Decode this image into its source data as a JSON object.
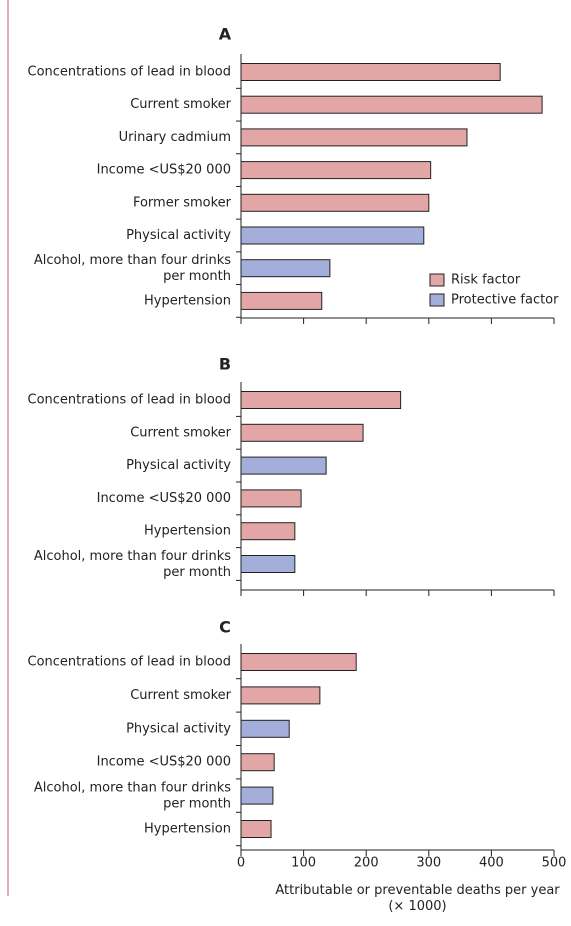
{
  "chart_data": [
    {
      "type": "bar",
      "orientation": "horizontal",
      "title": "A",
      "categories": [
        "Concentrations of lead in blood",
        "Current smoker",
        "Urinary cadmium",
        "Income <US$20 000",
        "Former smoker",
        "Physical activity",
        "Alcohol, more than four drinks\nper month",
        "Hypertension"
      ],
      "values": [
        414,
        481,
        361,
        303,
        300,
        292,
        142,
        129
      ],
      "colors": [
        "#e3a6a6",
        "#e3a6a6",
        "#e3a6a6",
        "#e3a6a6",
        "#e3a6a6",
        "#a3aedb",
        "#a3aedb",
        "#e3a6a6"
      ],
      "legend": [
        {
          "name": "Risk factor",
          "color": "#e3a6a6"
        },
        {
          "name": "Protective factor",
          "color": "#a3aedb"
        }
      ],
      "xlim": [
        0,
        500
      ],
      "xticks": [
        0,
        100,
        200,
        300,
        400,
        500
      ],
      "tick_labels": false
    },
    {
      "type": "bar",
      "orientation": "horizontal",
      "title": "B",
      "categories": [
        "Concentrations of lead in blood",
        "Current smoker",
        "Physical activity",
        "Income <US$20 000",
        "Hypertension",
        "Alcohol, more than four drinks\nper month"
      ],
      "values": [
        255,
        195,
        136,
        96,
        86,
        86
      ],
      "colors": [
        "#e3a6a6",
        "#e3a6a6",
        "#a3aedb",
        "#e3a6a6",
        "#e3a6a6",
        "#a3aedb"
      ],
      "xlim": [
        0,
        500
      ],
      "xticks": [
        0,
        100,
        200,
        300,
        400,
        500
      ],
      "tick_labels": false
    },
    {
      "type": "bar",
      "orientation": "horizontal",
      "title": "C",
      "categories": [
        "Concentrations of lead in blood",
        "Current smoker",
        "Physical activity",
        "Income <US$20 000",
        "Alcohol, more than four drinks\nper month",
        "Hypertension"
      ],
      "values": [
        184,
        126,
        77,
        53,
        51,
        48
      ],
      "colors": [
        "#e3a6a6",
        "#e3a6a6",
        "#a3aedb",
        "#e3a6a6",
        "#a3aedb",
        "#e3a6a6"
      ],
      "xlim": [
        0,
        500
      ],
      "xticks": [
        0,
        100,
        200,
        300,
        400,
        500
      ],
      "tick_labels": true,
      "xlabel": "Attributable or preventable deaths per year\n(× 1000)"
    }
  ]
}
